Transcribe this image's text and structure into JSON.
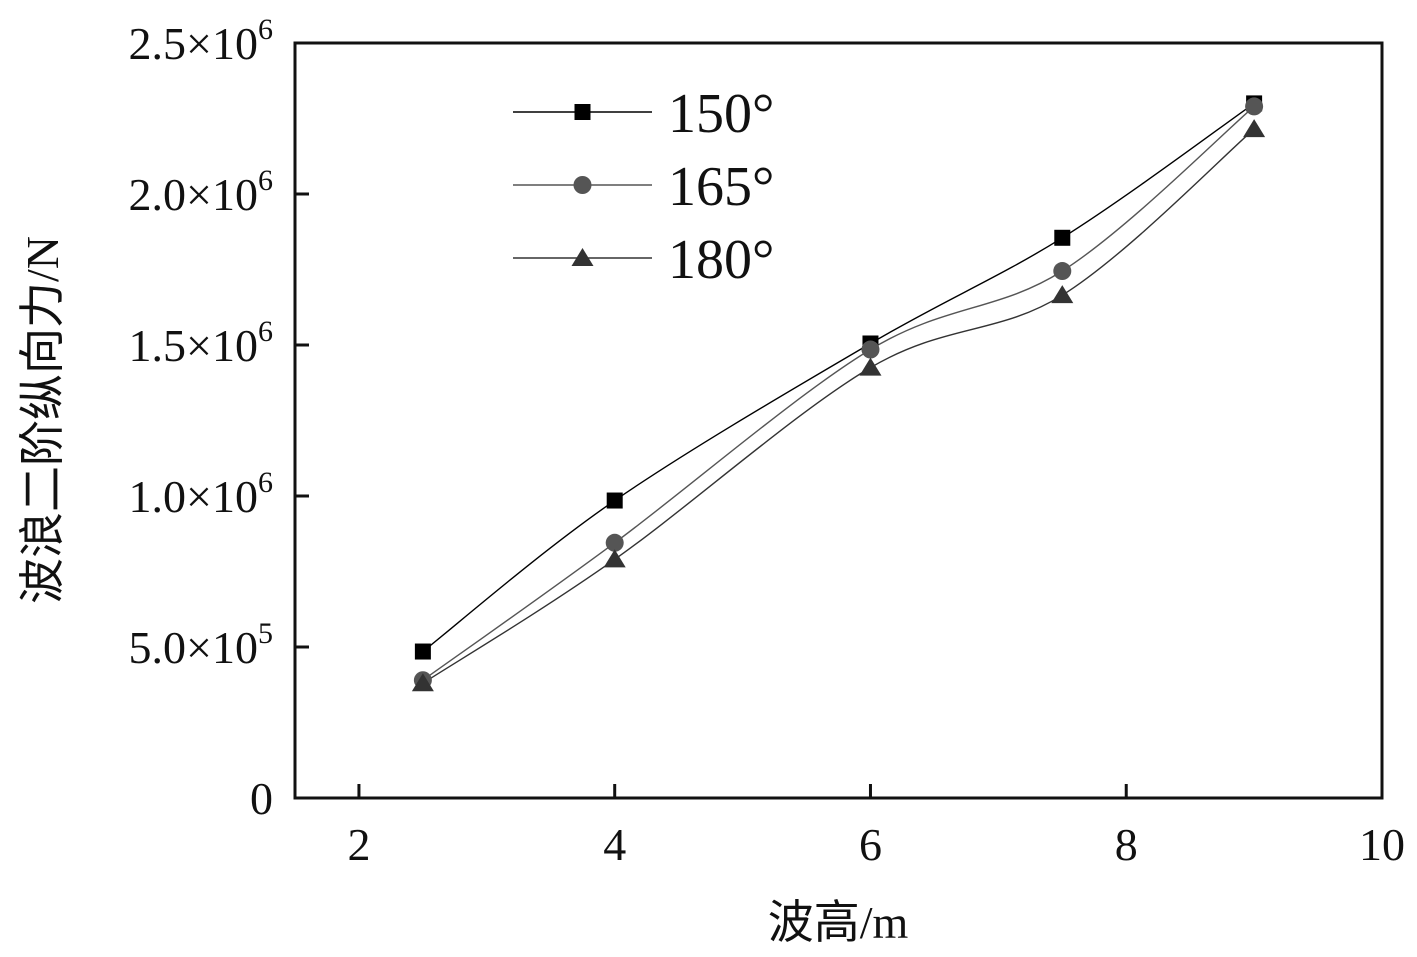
{
  "chart_data": {
    "type": "line",
    "xlabel": "波高/m",
    "ylabel": "波浪二阶纵向力/N",
    "xlim": [
      1.5,
      10
    ],
    "ylim": [
      0,
      2500000
    ],
    "xticks": [
      2,
      4,
      6,
      8,
      10
    ],
    "xtick_labels": [
      "2",
      "4",
      "6",
      "8",
      "10"
    ],
    "yticks": [
      0,
      500000,
      1000000,
      1500000,
      2000000,
      2500000
    ],
    "ytick_labels": [
      {
        "mantissa": "0",
        "exponent": ""
      },
      {
        "mantissa": "5.0×10",
        "exponent": "5"
      },
      {
        "mantissa": "1.0×10",
        "exponent": "6"
      },
      {
        "mantissa": "1.5×10",
        "exponent": "6"
      },
      {
        "mantissa": "2.0×10",
        "exponent": "6"
      },
      {
        "mantissa": "2.5×10",
        "exponent": "6"
      }
    ],
    "x": [
      2.5,
      4,
      6,
      7.5,
      9
    ],
    "series": [
      {
        "name": "150°",
        "marker": "square",
        "color": "#000000",
        "values": [
          485000,
          985000,
          1505000,
          1855000,
          2300000
        ]
      },
      {
        "name": "165°",
        "marker": "circle",
        "color": "#555555",
        "values": [
          390000,
          845000,
          1485000,
          1745000,
          2290000
        ]
      },
      {
        "name": "180°",
        "marker": "triangle",
        "color": "#333333",
        "values": [
          380000,
          790000,
          1425000,
          1665000,
          2215000
        ]
      }
    ],
    "grid": false,
    "legend_position": "top-left"
  }
}
